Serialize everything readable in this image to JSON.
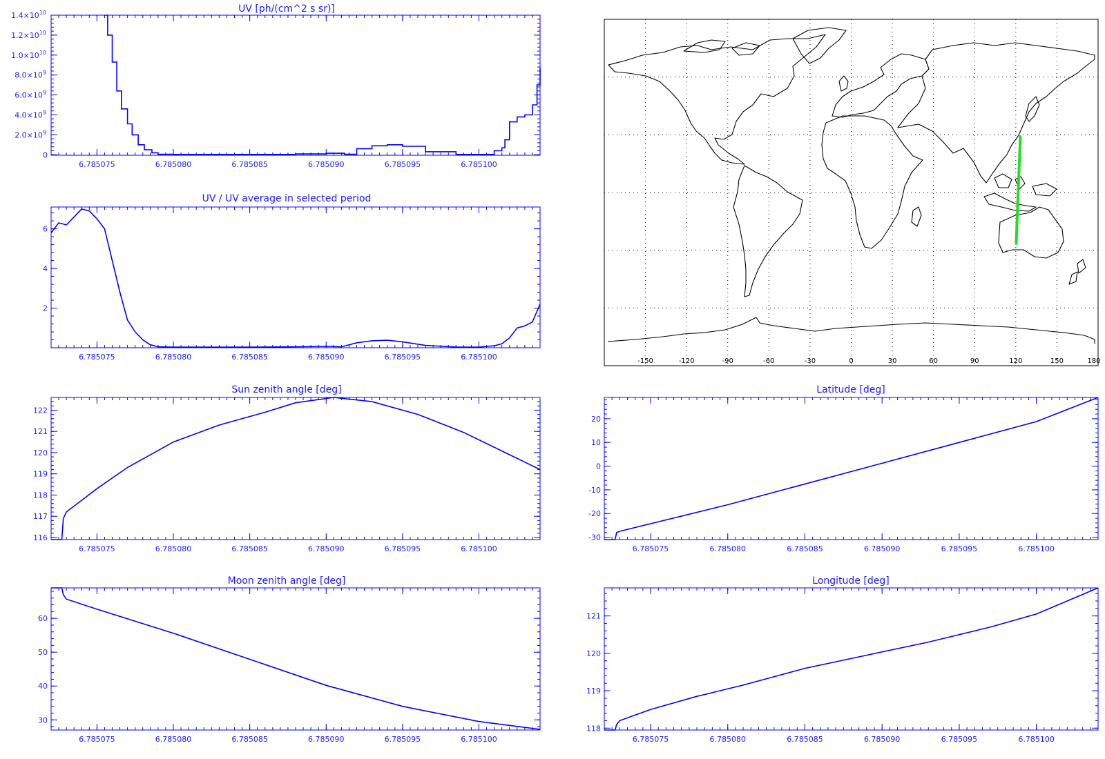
{
  "colors": {
    "axis": "#0000ff",
    "curve": "#0000ff",
    "map_line": "#000000",
    "track": "#22dd22",
    "grid": "#000000"
  },
  "chart_data": [
    {
      "id": "uv",
      "type": "line",
      "title": "UV [ph/(cm^2 s sr)]",
      "xlabel": "",
      "ylabel": "",
      "xlim": [
        6.785072,
        6.785104
      ],
      "ylim": [
        -50000000,
        14000000000
      ],
      "x_ticks": [
        "6.785075",
        "6.785080",
        "6.785085",
        "6.785090",
        "6.785095",
        "6.785100"
      ],
      "y_ticks": [
        {
          "v": 0,
          "base": "0",
          "exp": ""
        },
        {
          "v": 2000000000,
          "base": "2.0×10",
          "exp": "9"
        },
        {
          "v": 4000000000,
          "base": "4.0×10",
          "exp": "9"
        },
        {
          "v": 6000000000,
          "base": "6.0×10",
          "exp": "9"
        },
        {
          "v": 8000000000,
          "base": "8.0×10",
          "exp": "9"
        },
        {
          "v": 10000000000,
          "base": "1.0×10",
          "exp": "10"
        },
        {
          "v": 12000000000,
          "base": "1.2×10",
          "exp": "10"
        },
        {
          "v": 14000000000,
          "base": "1.4×10",
          "exp": "10"
        }
      ],
      "grid": false,
      "series": [
        {
          "x": [
            6.7850755,
            6.7850757,
            6.785076,
            6.7850763,
            6.7850766,
            6.785077,
            6.7850773,
            6.7850777,
            6.7850781,
            6.7850786,
            6.785079,
            6.78508,
            6.785085,
            6.785088,
            6.78509,
            6.7850912,
            6.785092,
            6.785093,
            6.785094,
            6.785095,
            6.7850965,
            6.7850985,
            6.7851,
            6.785101,
            6.7851015,
            6.7851017,
            6.785102,
            6.7851025,
            6.785103,
            6.7851035,
            6.7851038,
            6.785104
          ],
          "y": [
            14000000000,
            12000000000,
            9300000000,
            6400000000,
            4600000000,
            3100000000,
            2000000000,
            1000000000,
            500000000,
            200000000,
            50000000,
            30000000,
            30000000,
            80000000,
            150000000,
            50000000,
            600000000,
            900000000,
            1000000000,
            850000000,
            300000000,
            30000000,
            30000000,
            400000000,
            700000000,
            1500000000,
            3300000000,
            3800000000,
            4000000000,
            5000000000,
            7000000000,
            8700000000
          ]
        }
      ]
    },
    {
      "id": "uv_ratio",
      "type": "line",
      "title": "UV / UV average in selected period",
      "xlabel": "",
      "ylabel": "",
      "xlim": [
        6.785072,
        6.785104
      ],
      "ylim": [
        0,
        7.1
      ],
      "x_ticks": [
        "6.785075",
        "6.785080",
        "6.785085",
        "6.785090",
        "6.785095",
        "6.785100"
      ],
      "y_ticks": [
        {
          "v": 2,
          "base": "2",
          "exp": ""
        },
        {
          "v": 4,
          "base": "4",
          "exp": ""
        },
        {
          "v": 6,
          "base": "6",
          "exp": ""
        }
      ],
      "grid": false,
      "series": [
        {
          "x": [
            6.785072,
            6.7850725,
            6.785073,
            6.7850735,
            6.785074,
            6.7850745,
            6.785075,
            6.7850755,
            6.785076,
            6.7850765,
            6.785077,
            6.7850775,
            6.785078,
            6.7850785,
            6.785079,
            6.78508,
            6.785085,
            6.785088,
            6.78509,
            6.785091,
            6.785092,
            6.785093,
            6.785094,
            6.785095,
            6.7850965,
            6.7850985,
            6.7851,
            6.785101,
            6.7851015,
            6.785102,
            6.7851025,
            6.785103,
            6.7851035,
            6.785104
          ],
          "y": [
            5.8,
            6.3,
            6.2,
            6.6,
            7.0,
            6.9,
            6.5,
            6.0,
            4.4,
            2.8,
            1.4,
            0.8,
            0.4,
            0.15,
            0.05,
            0.03,
            0.03,
            0.05,
            0.07,
            0.05,
            0.25,
            0.35,
            0.38,
            0.3,
            0.12,
            0.04,
            0.03,
            0.1,
            0.2,
            0.5,
            1.0,
            1.1,
            1.3,
            2.2
          ]
        }
      ]
    },
    {
      "id": "sun_zenith",
      "type": "line",
      "title": "Sun zenith angle [deg]",
      "xlabel": "",
      "ylabel": "",
      "xlim": [
        6.785072,
        6.785104
      ],
      "ylim": [
        115.9,
        122.6
      ],
      "x_ticks": [
        "6.785075",
        "6.785080",
        "6.785085",
        "6.785090",
        "6.785095",
        "6.785100"
      ],
      "y_ticks": [
        {
          "v": 116,
          "base": "116",
          "exp": ""
        },
        {
          "v": 117,
          "base": "117",
          "exp": ""
        },
        {
          "v": 118,
          "base": "118",
          "exp": ""
        },
        {
          "v": 119,
          "base": "119",
          "exp": ""
        },
        {
          "v": 120,
          "base": "120",
          "exp": ""
        },
        {
          "v": 121,
          "base": "121",
          "exp": ""
        },
        {
          "v": 122,
          "base": "122",
          "exp": ""
        }
      ],
      "grid": false,
      "series": [
        {
          "x": [
            6.785072,
            6.7850727,
            6.7850728,
            6.785073,
            6.785075,
            6.785077,
            6.78508,
            6.785083,
            6.785086,
            6.785088,
            6.7850905,
            6.785093,
            6.785096,
            6.785099,
            6.785102,
            6.785104
          ],
          "y": [
            115.9,
            115.9,
            116.9,
            117.2,
            118.3,
            119.3,
            120.5,
            121.3,
            121.9,
            122.35,
            122.6,
            122.4,
            121.8,
            120.95,
            119.9,
            119.2
          ]
        }
      ]
    },
    {
      "id": "latitude",
      "type": "line",
      "title": "Latitude [deg]",
      "xlabel": "",
      "ylabel": "",
      "xlim": [
        6.785072,
        6.785104
      ],
      "ylim": [
        -31,
        29
      ],
      "x_ticks": [
        "6.785075",
        "6.785080",
        "6.785085",
        "6.785090",
        "6.785095",
        "6.785100"
      ],
      "y_ticks": [
        {
          "v": -30,
          "base": "-30",
          "exp": ""
        },
        {
          "v": -20,
          "base": "-20",
          "exp": ""
        },
        {
          "v": -10,
          "base": "-10",
          "exp": ""
        },
        {
          "v": 0,
          "base": "0",
          "exp": ""
        },
        {
          "v": 10,
          "base": "10",
          "exp": ""
        },
        {
          "v": 20,
          "base": "20",
          "exp": ""
        }
      ],
      "grid": false,
      "series": [
        {
          "x": [
            6.785072,
            6.7850727,
            6.7850728,
            6.785073,
            6.78508,
            6.78509,
            6.7851,
            6.785104
          ],
          "y": [
            -31,
            -31,
            -28,
            -27.5,
            -16.3,
            1.2,
            18.8,
            29
          ]
        }
      ]
    },
    {
      "id": "moon_zenith",
      "type": "line",
      "title": "Moon zenith angle [deg]",
      "xlabel": "",
      "ylabel": "",
      "xlim": [
        6.785072,
        6.785104
      ],
      "ylim": [
        27,
        69
      ],
      "x_ticks": [
        "6.785075",
        "6.785080",
        "6.785085",
        "6.785090",
        "6.785095",
        "6.785100"
      ],
      "y_ticks": [
        {
          "v": 30,
          "base": "30",
          "exp": ""
        },
        {
          "v": 40,
          "base": "40",
          "exp": ""
        },
        {
          "v": 50,
          "base": "50",
          "exp": ""
        },
        {
          "v": 60,
          "base": "60",
          "exp": ""
        }
      ],
      "grid": false,
      "series": [
        {
          "x": [
            6.785072,
            6.7850727,
            6.7850728,
            6.785073,
            6.785075,
            6.78508,
            6.785085,
            6.78509,
            6.785095,
            6.7851,
            6.785104
          ],
          "y": [
            69,
            69,
            67,
            65.7,
            62.7,
            55.6,
            47.9,
            40.2,
            34.0,
            29.5,
            27.2
          ]
        }
      ]
    },
    {
      "id": "longitude",
      "type": "line",
      "title": "Longitude [deg]",
      "xlabel": "",
      "ylabel": "",
      "xlim": [
        6.785072,
        6.785104
      ],
      "ylim": [
        117.95,
        121.75
      ],
      "x_ticks": [
        "6.785075",
        "6.785080",
        "6.785085",
        "6.785090",
        "6.785095",
        "6.785100"
      ],
      "y_ticks": [
        {
          "v": 118,
          "base": "118",
          "exp": ""
        },
        {
          "v": 119,
          "base": "119",
          "exp": ""
        },
        {
          "v": 120,
          "base": "120",
          "exp": ""
        },
        {
          "v": 121,
          "base": "121",
          "exp": ""
        }
      ],
      "grid": false,
      "series": [
        {
          "x": [
            6.785072,
            6.7850727,
            6.7850728,
            6.785073,
            6.785075,
            6.785078,
            6.785081,
            6.785085,
            6.785089,
            6.785093,
            6.785097,
            6.7851,
            6.785102,
            6.785104
          ],
          "y": [
            117.95,
            117.95,
            118.1,
            118.2,
            118.5,
            118.85,
            119.15,
            119.6,
            119.95,
            120.3,
            120.7,
            121.05,
            121.4,
            121.75
          ]
        }
      ]
    }
  ],
  "map": {
    "type": "world_map",
    "x_ticks": [
      "-150",
      "-120",
      "-90",
      "-60",
      "-30",
      "0",
      "30",
      "60",
      "90",
      "120",
      "150",
      "180"
    ],
    "lon_range": [
      -180,
      180
    ],
    "lat_range": [
      -90,
      90
    ],
    "track": {
      "start": [
        120.3,
        -26.5
      ],
      "end": [
        123.3,
        29
      ]
    }
  }
}
